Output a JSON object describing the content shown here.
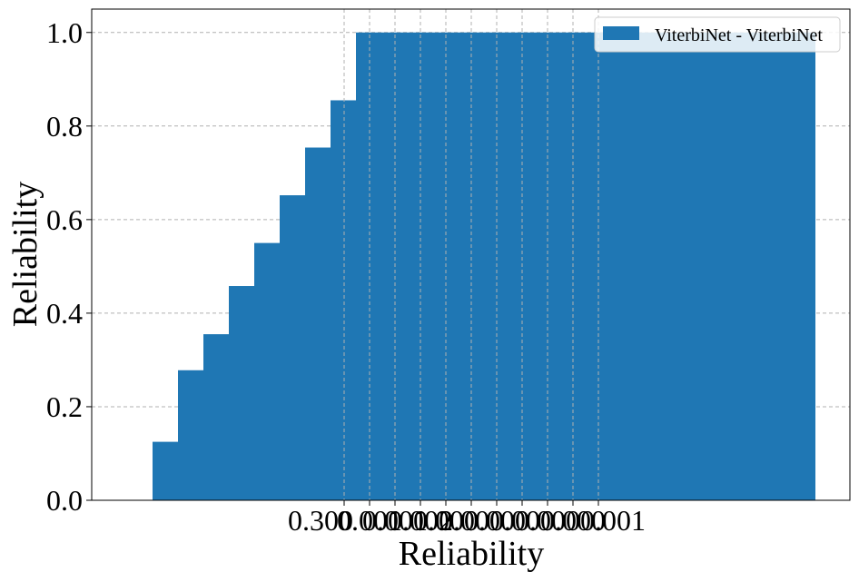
{
  "chart_data": {
    "type": "bar",
    "xlabel": "Reliability",
    "ylabel": "Reliability",
    "ylim": [
      0,
      1.05
    ],
    "y_ticks": [
      "0.0",
      "0.2",
      "0.4",
      "0.6",
      "0.8",
      "1.0"
    ],
    "x_tick_labels": [
      "0.300",
      "0.001",
      "0.001",
      "0.002",
      "0.000",
      "0.000",
      "0.000",
      "0.000",
      "0.000",
      "0.000",
      "0.001"
    ],
    "grid": true,
    "legend_position": "top-right",
    "series": [
      {
        "name": "ViterbiNet - ViterbiNet",
        "color": "#1f77b4",
        "values": [
          0.125,
          0.278,
          0.355,
          0.458,
          0.55,
          0.652,
          0.754,
          0.855,
          1.0,
          1.0,
          1.0,
          1.0,
          1.0,
          1.0,
          1.0,
          1.0,
          1.0,
          1.0,
          1.0,
          1.0,
          1.0
        ]
      }
    ]
  }
}
